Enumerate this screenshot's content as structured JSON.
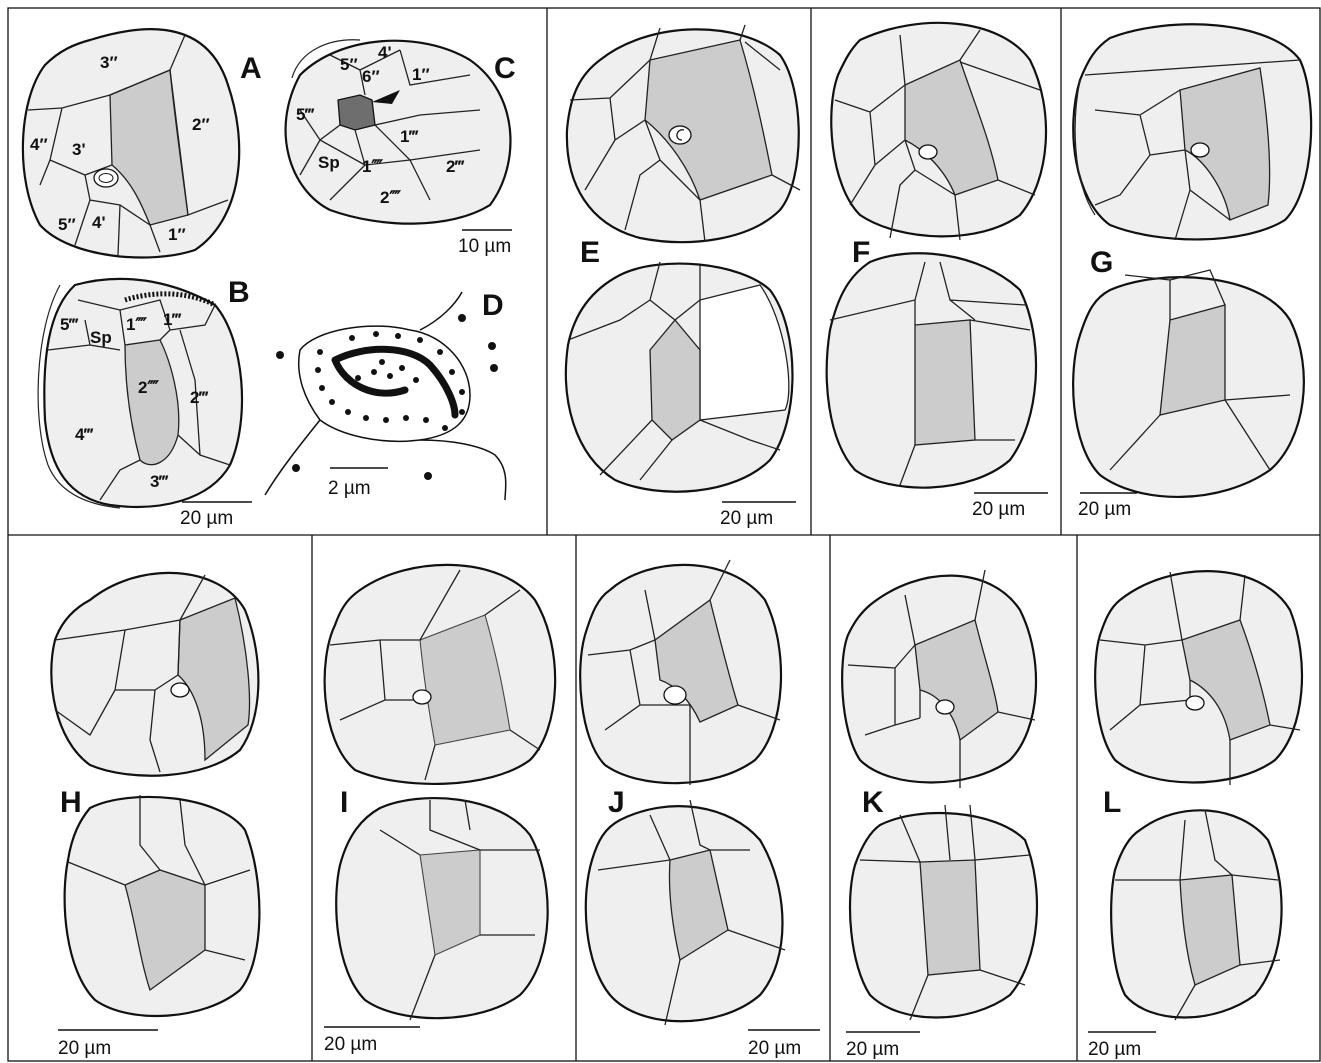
{
  "colors": {
    "background": "#ffffff",
    "plate_fill": "#efefef",
    "shaded_plate": "#cccccc",
    "dark_plate": "#6e6e6e",
    "outline": "#111111"
  },
  "panels": {
    "A": {
      "letter": "A",
      "scale": "",
      "labels": [
        "3″",
        "2″",
        "4″",
        "3'",
        "5″",
        "4'",
        "1″"
      ]
    },
    "B": {
      "letter": "B",
      "scale": "20 µm",
      "labels": [
        "5‴",
        "Sp",
        "1⁗",
        "1‴",
        "2⁗",
        "2‴",
        "4‴",
        "3‴"
      ]
    },
    "C": {
      "letter": "C",
      "scale": "10 µm",
      "labels": [
        "5″",
        "4'",
        "6″",
        "1″",
        "5‴",
        "1‴",
        "Sp",
        "1⁗",
        "2‴",
        "2⁗"
      ]
    },
    "D": {
      "letter": "D",
      "scale": "2 µm"
    },
    "E": {
      "letter": "E",
      "scale": "20 µm"
    },
    "F": {
      "letter": "F",
      "scale": "20 µm"
    },
    "G": {
      "letter": "G",
      "scale": "20 µm"
    },
    "H": {
      "letter": "H",
      "scale": "20 µm"
    },
    "I": {
      "letter": "I",
      "scale": "20 µm"
    },
    "J": {
      "letter": "J",
      "scale": "20 µm"
    },
    "K": {
      "letter": "K",
      "scale": "20 µm"
    },
    "L": {
      "letter": "L",
      "scale": "20 µm"
    }
  }
}
